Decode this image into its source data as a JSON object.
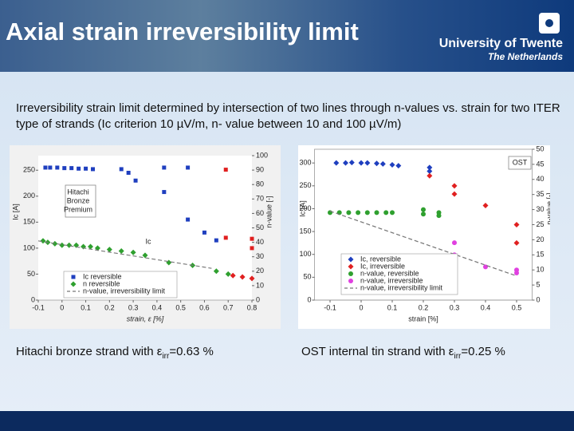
{
  "header": {
    "title": "Axial strain irreversibility limit",
    "logo_name": "University of Twente",
    "logo_country": "The Netherlands"
  },
  "description": "Irreversibility strain limit determined by intersection of two lines through n-values vs. strain for two ITER type of strands (Ic criterion 10 µV/m, n- value between 10 and 100 µV/m)",
  "captions": [
    [
      "Hitachi bronze strand with ε",
      "irr",
      "=0.63 %"
    ],
    [
      "OST internal tin strand with ε",
      "irr",
      "=0.25 %"
    ]
  ],
  "chart_data": [
    {
      "type": "scatter",
      "xlabel": "strain, ε [%]",
      "ylabel": "Ic [A]",
      "y2label": "n-value [-]",
      "xlim": [
        -0.1,
        0.8
      ],
      "xticks": [
        -0.1,
        0,
        0.1,
        0.2,
        0.3,
        0.4,
        0.5,
        0.6,
        0.7,
        0.8
      ],
      "ylim": [
        0,
        278
      ],
      "yticks": [
        0,
        50,
        100,
        150,
        200,
        250
      ],
      "y2lim": [
        0,
        100
      ],
      "y2ticks": [
        0,
        10,
        20,
        30,
        40,
        50,
        60,
        70,
        80,
        90,
        100
      ],
      "legend": "lower left",
      "annotations": [
        "Hitachi",
        "Bronze",
        "Premium",
        "Ic"
      ],
      "series": [
        {
          "name": "Ic reversible",
          "color": "#1f3fbf",
          "marker": "square",
          "axis": "y",
          "x": [
            -0.07,
            -0.05,
            -0.02,
            0.01,
            0.04,
            0.07,
            0.1,
            0.13,
            0.25,
            0.28,
            0.31,
            0.43,
            0.43,
            0.53,
            0.53,
            0.6,
            0.65
          ],
          "values": [
            255,
            255,
            255,
            254,
            254,
            253,
            253,
            252,
            252,
            245,
            230,
            255,
            208,
            255,
            155,
            130,
            115
          ]
        },
        {
          "color": "#e02020",
          "marker": "square",
          "axis": "y",
          "x": [
            0.69,
            0.69,
            0.8,
            0.8
          ],
          "values": [
            251,
            120,
            118,
            100
          ]
        },
        {
          "name": "n reversible",
          "color": "#2fa02f",
          "marker": "diamond",
          "axis": "y2",
          "x": [
            -0.08,
            -0.06,
            -0.03,
            0,
            0.03,
            0.06,
            0.09,
            0.12,
            0.15,
            0.2,
            0.25,
            0.3,
            0.35,
            0.45,
            0.55,
            0.65,
            0.7
          ],
          "values": [
            41,
            40,
            39,
            38,
            38,
            38,
            37,
            37,
            36,
            35,
            34,
            33,
            31,
            26,
            24,
            20,
            18
          ]
        },
        {
          "color": "#e02020",
          "marker": "diamond",
          "axis": "y2",
          "x": [
            0.72,
            0.76,
            0.8
          ],
          "values": [
            17,
            16,
            15
          ]
        },
        {
          "name": "n-value, irreversibility limit",
          "color": "#777777",
          "marker": "dashed",
          "axis": "y2",
          "x": [
            -0.1,
            0.63
          ],
          "values": [
            41,
            22
          ]
        }
      ]
    },
    {
      "type": "scatter",
      "xlabel": "strain [%]",
      "ylabel": "Ic [A]",
      "y2label": "n-value [-]",
      "xlim": [
        -0.15,
        0.55
      ],
      "xticks": [
        -0.1,
        0,
        0.1,
        0.2,
        0.3,
        0.4,
        0.5
      ],
      "ylim": [
        0,
        330
      ],
      "yticks": [
        0,
        50,
        100,
        150,
        200,
        250,
        300
      ],
      "y2lim": [
        0,
        50
      ],
      "y2ticks": [
        0,
        5,
        10,
        15,
        20,
        25,
        30,
        35,
        40,
        45,
        50
      ],
      "legend": "lower left",
      "annotations": [
        "OST"
      ],
      "series": [
        {
          "name": "Ic, reversible",
          "color": "#1f3fbf",
          "marker": "diamond",
          "axis": "y",
          "x": [
            -0.08,
            -0.05,
            -0.03,
            0,
            0.02,
            0.05,
            0.07,
            0.1,
            0.12,
            0.22,
            0.22
          ],
          "values": [
            300,
            300,
            301,
            300,
            300,
            299,
            298,
            296,
            294,
            290,
            282
          ]
        },
        {
          "name": "Ic, irreversible",
          "color": "#e02020",
          "marker": "diamond",
          "axis": "y",
          "x": [
            0.22,
            0.3,
            0.3,
            0.4,
            0.5,
            0.5
          ],
          "values": [
            272,
            250,
            232,
            207,
            165,
            125
          ]
        },
        {
          "name": "n-value, reversible",
          "color": "#2fa02f",
          "marker": "circle",
          "axis": "y2",
          "x": [
            -0.1,
            -0.07,
            -0.04,
            -0.01,
            0.02,
            0.05,
            0.08,
            0.1,
            0.2,
            0.2,
            0.25,
            0.25
          ],
          "values": [
            29,
            29,
            29,
            29,
            29,
            29,
            29,
            29,
            30,
            28.5,
            29,
            28
          ]
        },
        {
          "name": "n-value, irreversible",
          "color": "#e040e0",
          "marker": "circle",
          "axis": "y2",
          "x": [
            0.3,
            0.3,
            0.4,
            0.5,
            0.5
          ],
          "values": [
            19,
            15,
            11,
            10,
            9
          ]
        },
        {
          "name": "n-value, irreversibility limit",
          "color": "#777777",
          "marker": "dashed",
          "axis": "y2",
          "x": [
            -0.1,
            0.5
          ],
          "values": [
            29.5,
            8
          ]
        }
      ]
    }
  ]
}
